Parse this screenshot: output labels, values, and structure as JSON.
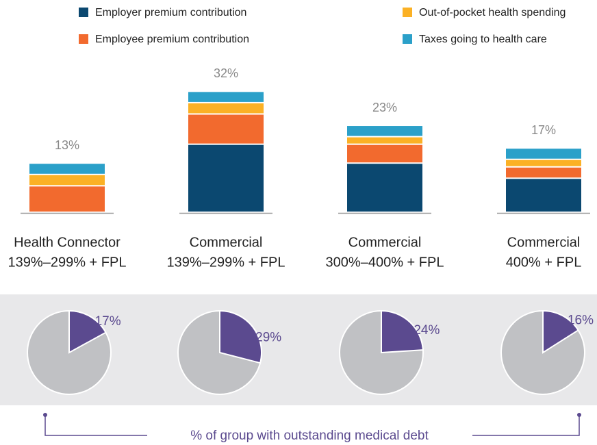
{
  "chart_data": [
    {
      "type": "bar",
      "categories": [
        [
          "Health Connector",
          "139%–299% + FPL"
        ],
        [
          "Commercial",
          "139%–299% + FPL"
        ],
        [
          "Commercial",
          "300%–400% + FPL"
        ],
        [
          "Commercial",
          "400% + FPL"
        ]
      ],
      "series": [
        {
          "name": "Employer premium contribution",
          "color": "#0b4870",
          "values": [
            0,
            18,
            13,
            9
          ]
        },
        {
          "name": "Employee premium contribution",
          "color": "#f26a2e",
          "values": [
            7,
            8,
            5,
            3
          ]
        },
        {
          "name": "Out-of-pocket health spending",
          "color": "#fbb125",
          "values": [
            3,
            3,
            2,
            2
          ]
        },
        {
          "name": "Taxes going to health care",
          "color": "#2ba0c9",
          "values": [
            3,
            3,
            3,
            3
          ]
        }
      ],
      "totals": [
        13,
        32,
        23,
        17
      ],
      "total_labels": [
        "13%",
        "32%",
        "23%",
        "17%"
      ],
      "ylim": [
        0,
        35
      ],
      "stacked": true
    },
    {
      "type": "pie",
      "values": [
        17,
        29,
        24,
        16
      ],
      "value_labels": [
        "17%",
        "29%",
        "24%",
        "16%"
      ],
      "color": "#5b4a8f",
      "rest_color": "#c0c1c4",
      "caption": "% of group with outstanding medical debt"
    }
  ]
}
